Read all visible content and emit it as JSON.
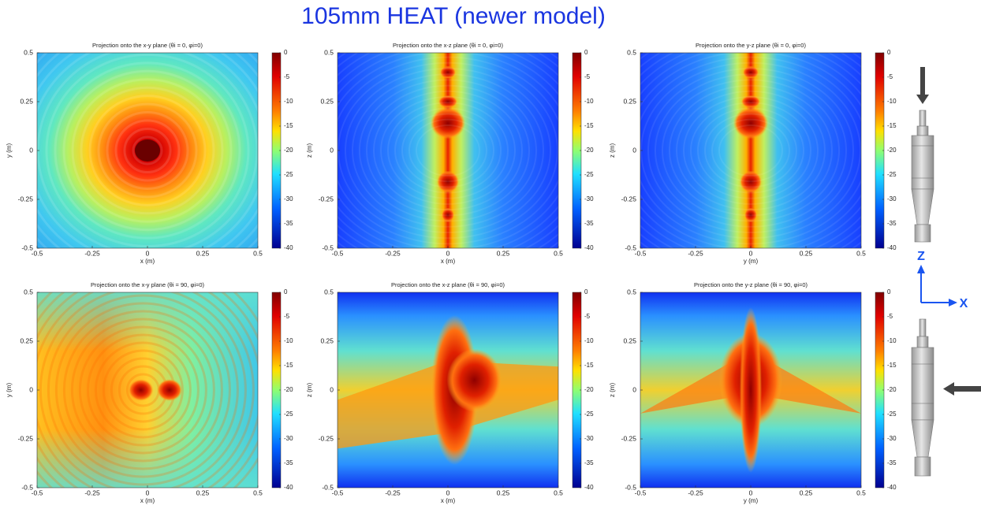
{
  "title": "105mm HEAT (newer model)",
  "axis_labels": [
    "Z",
    "X"
  ],
  "chart_data": [
    {
      "type": "heatmap",
      "title": "Projection onto the x-y plane (θi = 0, φi=0)",
      "xlabel": "x (m)",
      "ylabel": "y (m)",
      "xlim": [
        -0.5,
        0.5
      ],
      "ylim": [
        -0.5,
        0.5
      ],
      "xticks": [
        -0.5,
        -0.25,
        0,
        0.25,
        0.5
      ],
      "yticks": [
        -0.5,
        -0.25,
        0,
        0.25,
        0.5
      ],
      "clim": [
        -40,
        0
      ],
      "cticks": [
        0,
        -5,
        -10,
        -15,
        -20,
        -25,
        -30,
        -35,
        -40
      ]
    },
    {
      "type": "heatmap",
      "title": "Projection onto the x-z plane (θi = 0, φi=0)",
      "xlabel": "x (m)",
      "ylabel": "z (m)",
      "xlim": [
        -0.5,
        0.5
      ],
      "ylim": [
        -0.5,
        0.5
      ],
      "xticks": [
        -0.5,
        -0.25,
        0,
        0.25,
        0.5
      ],
      "yticks": [
        -0.5,
        -0.25,
        0,
        0.25,
        0.5
      ],
      "clim": [
        -40,
        0
      ],
      "cticks": [
        0,
        -5,
        -10,
        -15,
        -20,
        -25,
        -30,
        -35,
        -40
      ]
    },
    {
      "type": "heatmap",
      "title": "Projection onto the y-z plane (θi = 0, φi=0)",
      "xlabel": "y (m)",
      "ylabel": "z (m)",
      "xlim": [
        -0.5,
        0.5
      ],
      "ylim": [
        -0.5,
        0.5
      ],
      "xticks": [
        -0.5,
        -0.25,
        0,
        0.25,
        0.5
      ],
      "yticks": [
        -0.5,
        -0.25,
        0,
        0.25,
        0.5
      ],
      "clim": [
        -40,
        0
      ],
      "cticks": [
        0,
        -5,
        -10,
        -15,
        -20,
        -25,
        -30,
        -35,
        -40
      ]
    },
    {
      "type": "heatmap",
      "title": "Projection onto the x-y plane (θi = 90, φi=0)",
      "xlabel": "x (m)",
      "ylabel": "y (m)",
      "xlim": [
        -0.5,
        0.5
      ],
      "ylim": [
        -0.5,
        0.5
      ],
      "xticks": [
        -0.5,
        -0.25,
        0,
        0.25,
        0.5
      ],
      "yticks": [
        -0.5,
        -0.25,
        0,
        0.25,
        0.5
      ],
      "clim": [
        -40,
        0
      ],
      "cticks": [
        0,
        -5,
        -10,
        -15,
        -20,
        -25,
        -30,
        -35,
        -40
      ]
    },
    {
      "type": "heatmap",
      "title": "Projection onto the x-z plane (θi = 90, φi=0)",
      "xlabel": "x (m)",
      "ylabel": "z (m)",
      "xlim": [
        -0.5,
        0.5
      ],
      "ylim": [
        -0.5,
        0.5
      ],
      "xticks": [
        -0.5,
        -0.25,
        0,
        0.25,
        0.5
      ],
      "yticks": [
        -0.5,
        -0.25,
        0,
        0.25,
        0.5
      ],
      "clim": [
        -40,
        0
      ],
      "cticks": [
        0,
        -5,
        -10,
        -15,
        -20,
        -25,
        -30,
        -35,
        -40
      ]
    },
    {
      "type": "heatmap",
      "title": "Projection onto the y-z plane (θi = 90, φi=0)",
      "xlabel": "y (m)",
      "ylabel": "z (m)",
      "xlim": [
        -0.5,
        0.5
      ],
      "ylim": [
        -0.5,
        0.5
      ],
      "xticks": [
        -0.5,
        -0.25,
        0,
        0.25,
        0.5
      ],
      "yticks": [
        -0.5,
        -0.25,
        0,
        0.25,
        0.5
      ],
      "clim": [
        -40,
        0
      ],
      "cticks": [
        0,
        -5,
        -10,
        -15,
        -20,
        -25,
        -30,
        -35,
        -40
      ]
    }
  ]
}
